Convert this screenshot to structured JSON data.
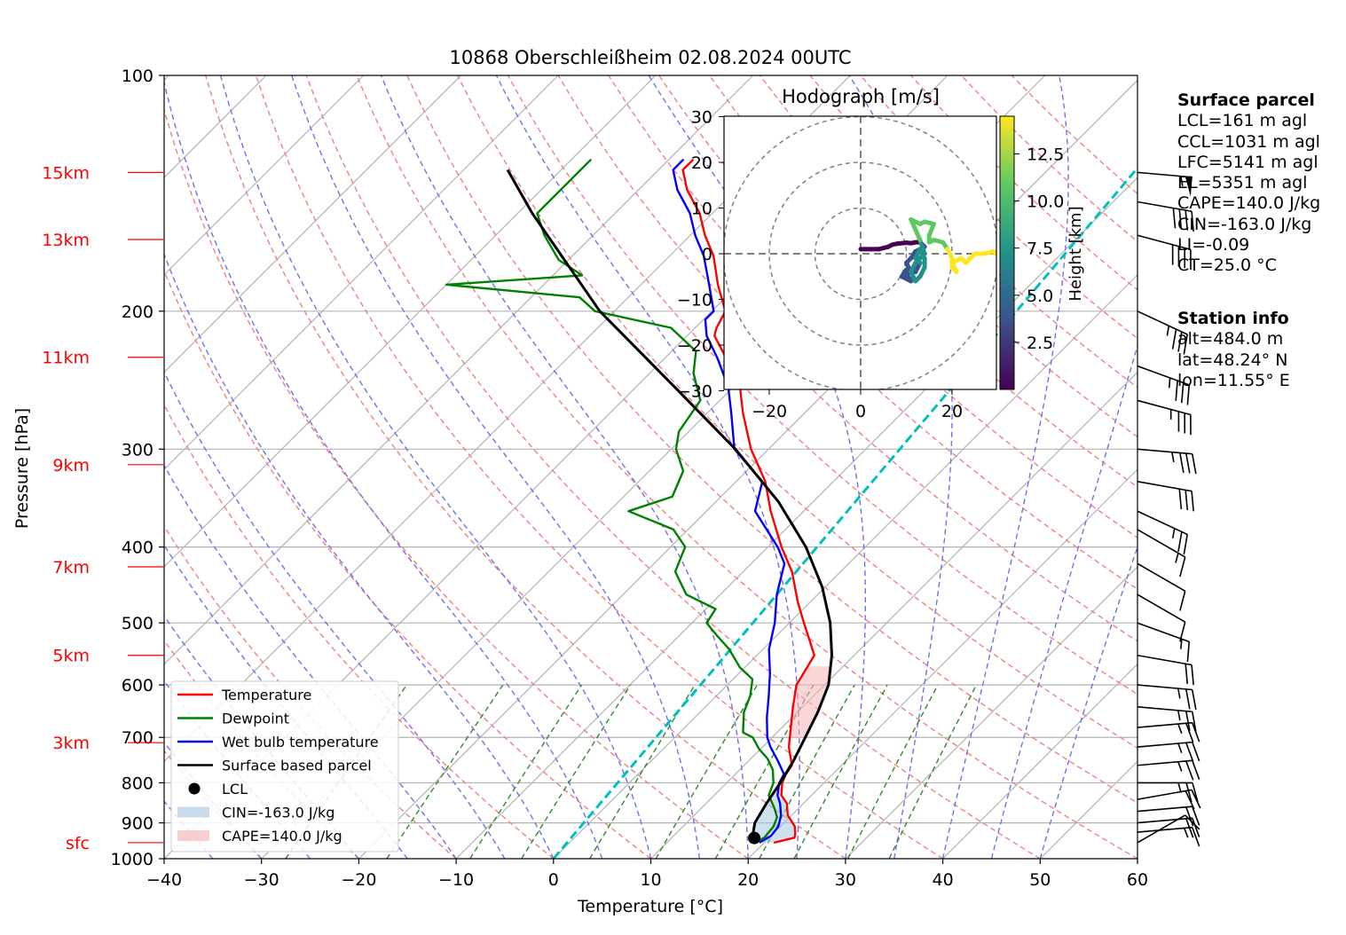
{
  "chart_data": {
    "type": "line",
    "title": "10868 Oberschleißheim 02.08.2024 00UTC",
    "xlabel": "Temperature [°C]",
    "ylabel": "Pressure [hPa]",
    "xlim": [
      -40,
      60
    ],
    "ylim": [
      1000,
      100
    ],
    "y_scale": "log",
    "skew": "45°",
    "x_ticks": [
      "−40",
      "−30",
      "−20",
      "−10",
      "0",
      "10",
      "20",
      "30",
      "40",
      "50",
      "60"
    ],
    "y_ticks": [
      {
        "p": 100,
        "label": "100"
      },
      {
        "p": 200,
        "label": "200"
      },
      {
        "p": 300,
        "label": "300"
      },
      {
        "p": 400,
        "label": "400"
      },
      {
        "p": 500,
        "label": "500"
      },
      {
        "p": 600,
        "label": "600"
      },
      {
        "p": 700,
        "label": "700"
      },
      {
        "p": 800,
        "label": "800"
      },
      {
        "p": 900,
        "label": "900"
      },
      {
        "p": 1000,
        "label": "1000"
      }
    ],
    "height_labels": [
      {
        "label": "15km",
        "p": 133
      },
      {
        "label": "13km",
        "p": 162
      },
      {
        "label": "11km",
        "p": 229
      },
      {
        "label": "9km",
        "p": 314
      },
      {
        "label": "7km",
        "p": 424
      },
      {
        "label": "5km",
        "p": 550
      },
      {
        "label": "3km",
        "p": 711
      },
      {
        "label": "sfc",
        "p": 954
      }
    ],
    "grid": true,
    "legend_position": "lower-left",
    "series": [
      {
        "name": "Temperature",
        "color": "#ff0000",
        "points": [
          [
            954,
            21
          ],
          [
            940,
            22.6
          ],
          [
            930,
            22.3
          ],
          [
            910,
            21.5
          ],
          [
            880,
            19.6
          ],
          [
            850,
            18.3
          ],
          [
            830,
            16.9
          ],
          [
            800,
            15.7
          ],
          [
            780,
            15.2
          ],
          [
            760,
            14.9
          ],
          [
            720,
            12.7
          ],
          [
            680,
            10.9
          ],
          [
            640,
            9.0
          ],
          [
            600,
            7.1
          ],
          [
            570,
            6.4
          ],
          [
            550,
            5.9
          ],
          [
            530,
            4.2
          ],
          [
            500,
            1.5
          ],
          [
            470,
            -1.3
          ],
          [
            430,
            -5.0
          ],
          [
            400,
            -8.6
          ],
          [
            360,
            -13.4
          ],
          [
            330,
            -17.0
          ],
          [
            300,
            -21.8
          ],
          [
            270,
            -26.3
          ],
          [
            250,
            -29.3
          ],
          [
            230,
            -33.6
          ],
          [
            215,
            -37.2
          ],
          [
            210,
            -37.8
          ],
          [
            200,
            -38.6
          ],
          [
            185,
            -42.1
          ],
          [
            170,
            -45.5
          ],
          [
            160,
            -48.5
          ],
          [
            150,
            -51.3
          ],
          [
            140,
            -55.0
          ],
          [
            132,
            -57.5
          ],
          [
            128,
            -57.5
          ]
        ]
      },
      {
        "name": "Dewpoint",
        "color": "#008000",
        "points": [
          [
            954,
            18.9
          ],
          [
            940,
            19.5
          ],
          [
            910,
            19.3
          ],
          [
            885,
            18.7
          ],
          [
            860,
            17.4
          ],
          [
            830,
            15.6
          ],
          [
            800,
            14.8
          ],
          [
            770,
            13.4
          ],
          [
            745,
            11.7
          ],
          [
            725,
            9.9
          ],
          [
            700,
            8.0
          ],
          [
            690,
            6.5
          ],
          [
            650,
            4.5
          ],
          [
            620,
            3.5
          ],
          [
            590,
            2.0
          ],
          [
            570,
            -0.5
          ],
          [
            540,
            -3.5
          ],
          [
            520,
            -6.0
          ],
          [
            500,
            -8.5
          ],
          [
            480,
            -9.0
          ],
          [
            460,
            -13.5
          ],
          [
            430,
            -17.0
          ],
          [
            400,
            -18.5
          ],
          [
            380,
            -21.5
          ],
          [
            360,
            -28.0
          ],
          [
            345,
            -25.0
          ],
          [
            320,
            -26.5
          ],
          [
            300,
            -29.5
          ],
          [
            285,
            -31.0
          ],
          [
            260,
            -32.0
          ],
          [
            240,
            -35.5
          ],
          [
            225,
            -37.5
          ],
          [
            210,
            -42.5
          ],
          [
            200,
            -52.0
          ],
          [
            192,
            -55.0
          ],
          [
            185,
            -70.0
          ],
          [
            180,
            -57.0
          ],
          [
            172,
            -61.0
          ],
          [
            160,
            -65.0
          ],
          [
            150,
            -68.0
          ],
          [
            142,
            -68.0
          ],
          [
            132,
            -68.0
          ],
          [
            128,
            -68.0
          ]
        ]
      },
      {
        "name": "Wet bulb temperature",
        "color": "#0000ff",
        "points": [
          [
            954,
            19.5
          ],
          [
            935,
            20.0
          ],
          [
            910,
            19.8
          ],
          [
            880,
            18.9
          ],
          [
            850,
            17.6
          ],
          [
            830,
            16.5
          ],
          [
            800,
            15.4
          ],
          [
            780,
            15.0
          ],
          [
            750,
            13.0
          ],
          [
            720,
            10.8
          ],
          [
            700,
            9.5
          ],
          [
            660,
            7.4
          ],
          [
            620,
            5.4
          ],
          [
            580,
            3.2
          ],
          [
            540,
            0.6
          ],
          [
            500,
            -1.5
          ],
          [
            460,
            -4.2
          ],
          [
            420,
            -6.6
          ],
          [
            400,
            -9.0
          ],
          [
            360,
            -15.0
          ],
          [
            330,
            -17.3
          ],
          [
            300,
            -23.5
          ],
          [
            270,
            -27.5
          ],
          [
            250,
            -30.5
          ],
          [
            230,
            -34.5
          ],
          [
            215,
            -38.0
          ],
          [
            205,
            -39.8
          ],
          [
            200,
            -39.8
          ],
          [
            185,
            -43.0
          ],
          [
            170,
            -46.5
          ],
          [
            160,
            -49.5
          ],
          [
            150,
            -52.3
          ],
          [
            140,
            -56.0
          ],
          [
            132,
            -58.5
          ],
          [
            128,
            -58.5
          ]
        ]
      },
      {
        "name": "Surface based parcel",
        "color": "#000000",
        "points": [
          [
            954,
            18.7
          ],
          [
            900,
            17.0
          ],
          [
            850,
            16.2
          ],
          [
            800,
            15.5
          ],
          [
            750,
            14.6
          ],
          [
            700,
            13.4
          ],
          [
            650,
            12.1
          ],
          [
            600,
            10.4
          ],
          [
            550,
            7.7
          ],
          [
            500,
            4.2
          ],
          [
            450,
            -0.3
          ],
          [
            400,
            -6.1
          ],
          [
            350,
            -13.6
          ],
          [
            300,
            -23.4
          ],
          [
            250,
            -36.0
          ],
          [
            200,
            -51.5
          ],
          [
            150,
            -68.5
          ],
          [
            132,
            -75.5
          ]
        ]
      }
    ],
    "lcl_point": {
      "p": 941,
      "t": 18.5
    },
    "legend": [
      {
        "label": "Temperature",
        "kind": "line",
        "color": "#ff0000"
      },
      {
        "label": "Dewpoint",
        "kind": "line",
        "color": "#008000"
      },
      {
        "label": "Wet bulb temperature",
        "kind": "line",
        "color": "#0000ff"
      },
      {
        "label": "Surface based parcel",
        "kind": "line",
        "color": "#000000"
      },
      {
        "label": "LCL",
        "kind": "dot",
        "color": "#000000"
      },
      {
        "label": "CIN=-163.0 J/kg",
        "kind": "patch",
        "color": "#a9c8e0"
      },
      {
        "label": "CAPE=140.0 J/kg",
        "kind": "patch",
        "color": "#f4b6b6"
      }
    ],
    "shading": {
      "cin_range": [
        954,
        760
      ],
      "cape_range": [
        700,
        565
      ]
    },
    "wind_barbs": [
      {
        "p": 954,
        "knots": 10,
        "dir": 240
      },
      {
        "p": 925,
        "knots": 15,
        "dir": 265
      },
      {
        "p": 900,
        "knots": 20,
        "dir": 265
      },
      {
        "p": 870,
        "knots": 20,
        "dir": 265
      },
      {
        "p": 840,
        "knots": 20,
        "dir": 260
      },
      {
        "p": 800,
        "knots": 25,
        "dir": 270
      },
      {
        "p": 760,
        "knots": 25,
        "dir": 265
      },
      {
        "p": 720,
        "knots": 25,
        "dir": 265
      },
      {
        "p": 680,
        "knots": 25,
        "dir": 265
      },
      {
        "p": 640,
        "knots": 25,
        "dir": 275
      },
      {
        "p": 600,
        "knots": 25,
        "dir": 275
      },
      {
        "p": 550,
        "knots": 20,
        "dir": 280
      },
      {
        "p": 500,
        "knots": 15,
        "dir": 290
      },
      {
        "p": 460,
        "knots": 10,
        "dir": 300
      },
      {
        "p": 420,
        "knots": 10,
        "dir": 300
      },
      {
        "p": 380,
        "knots": 15,
        "dir": 300
      },
      {
        "p": 360,
        "knots": 25,
        "dir": 295
      },
      {
        "p": 330,
        "knots": 30,
        "dir": 280
      },
      {
        "p": 300,
        "knots": 35,
        "dir": 275
      },
      {
        "p": 260,
        "knots": 35,
        "dir": 285
      },
      {
        "p": 235,
        "knots": 35,
        "dir": 290
      },
      {
        "p": 200,
        "knots": 35,
        "dir": 295
      },
      {
        "p": 160,
        "knots": 40,
        "dir": 285
      },
      {
        "p": 145,
        "knots": 40,
        "dir": 280
      },
      {
        "p": 133,
        "knots": 55,
        "dir": 275
      }
    ]
  },
  "hodograph": {
    "title": "Hodograph [m/s]",
    "x_ticks": [
      "−20",
      "0",
      "20"
    ],
    "y_ticks": [
      "30",
      "20",
      "10",
      "0",
      "−10",
      "−20",
      "−30"
    ],
    "colorbar_label": "Height [km]",
    "colorbar_ticks": [
      "2.5",
      "5.0",
      "7.5",
      "10.0",
      "12.5"
    ],
    "points": [
      [
        0,
        1
      ],
      [
        2,
        1
      ],
      [
        4,
        1
      ],
      [
        6,
        1.5
      ],
      [
        7,
        2
      ],
      [
        8,
        2.2
      ],
      [
        10,
        2.4
      ],
      [
        11,
        2.3
      ],
      [
        12,
        2.5
      ],
      [
        13,
        2.5
      ],
      [
        14,
        1.5
      ],
      [
        12,
        0.5
      ],
      [
        11,
        -1
      ],
      [
        10,
        -2
      ],
      [
        11,
        -4
      ],
      [
        10,
        -4.5
      ],
      [
        11,
        -6
      ],
      [
        9,
        -5
      ],
      [
        10,
        -3.5
      ],
      [
        12,
        -4
      ],
      [
        13,
        -2
      ],
      [
        12,
        -1
      ],
      [
        13,
        1
      ],
      [
        14,
        -1
      ],
      [
        14,
        -3
      ],
      [
        13,
        -5
      ],
      [
        12,
        -6
      ],
      [
        11,
        -4
      ],
      [
        12,
        -2
      ],
      [
        14,
        0
      ],
      [
        13,
        3
      ],
      [
        11,
        7.5
      ],
      [
        12,
        7
      ],
      [
        13,
        6.5
      ],
      [
        14,
        7
      ],
      [
        16,
        6.5
      ],
      [
        15,
        4
      ],
      [
        15,
        2.5
      ],
      [
        16,
        3
      ],
      [
        18,
        2.5
      ],
      [
        19,
        1
      ],
      [
        20,
        -1
      ],
      [
        20,
        -3
      ],
      [
        21,
        -4
      ],
      [
        20,
        -2
      ],
      [
        22,
        -1
      ],
      [
        23,
        -2
      ],
      [
        24,
        -1
      ],
      [
        25,
        0
      ],
      [
        27,
        0
      ],
      [
        29,
        0.5
      ],
      [
        29.5,
        0
      ]
    ]
  },
  "surface_parcel": {
    "title": "Surface parcel",
    "lines": [
      "LCL=161 m agl",
      "CCL=1031 m agl",
      "LFC=5141 m agl",
      "EL=5351 m agl",
      "CAPE=140.0 J/kg",
      "CIN=-163.0 J/kg",
      "LI=-0.09",
      "CT=25.0 °C"
    ]
  },
  "station_info": {
    "title": "Station info",
    "lines": [
      "alt=484.0 m",
      "lat=48.24° N",
      "lon=11.55° E"
    ]
  }
}
